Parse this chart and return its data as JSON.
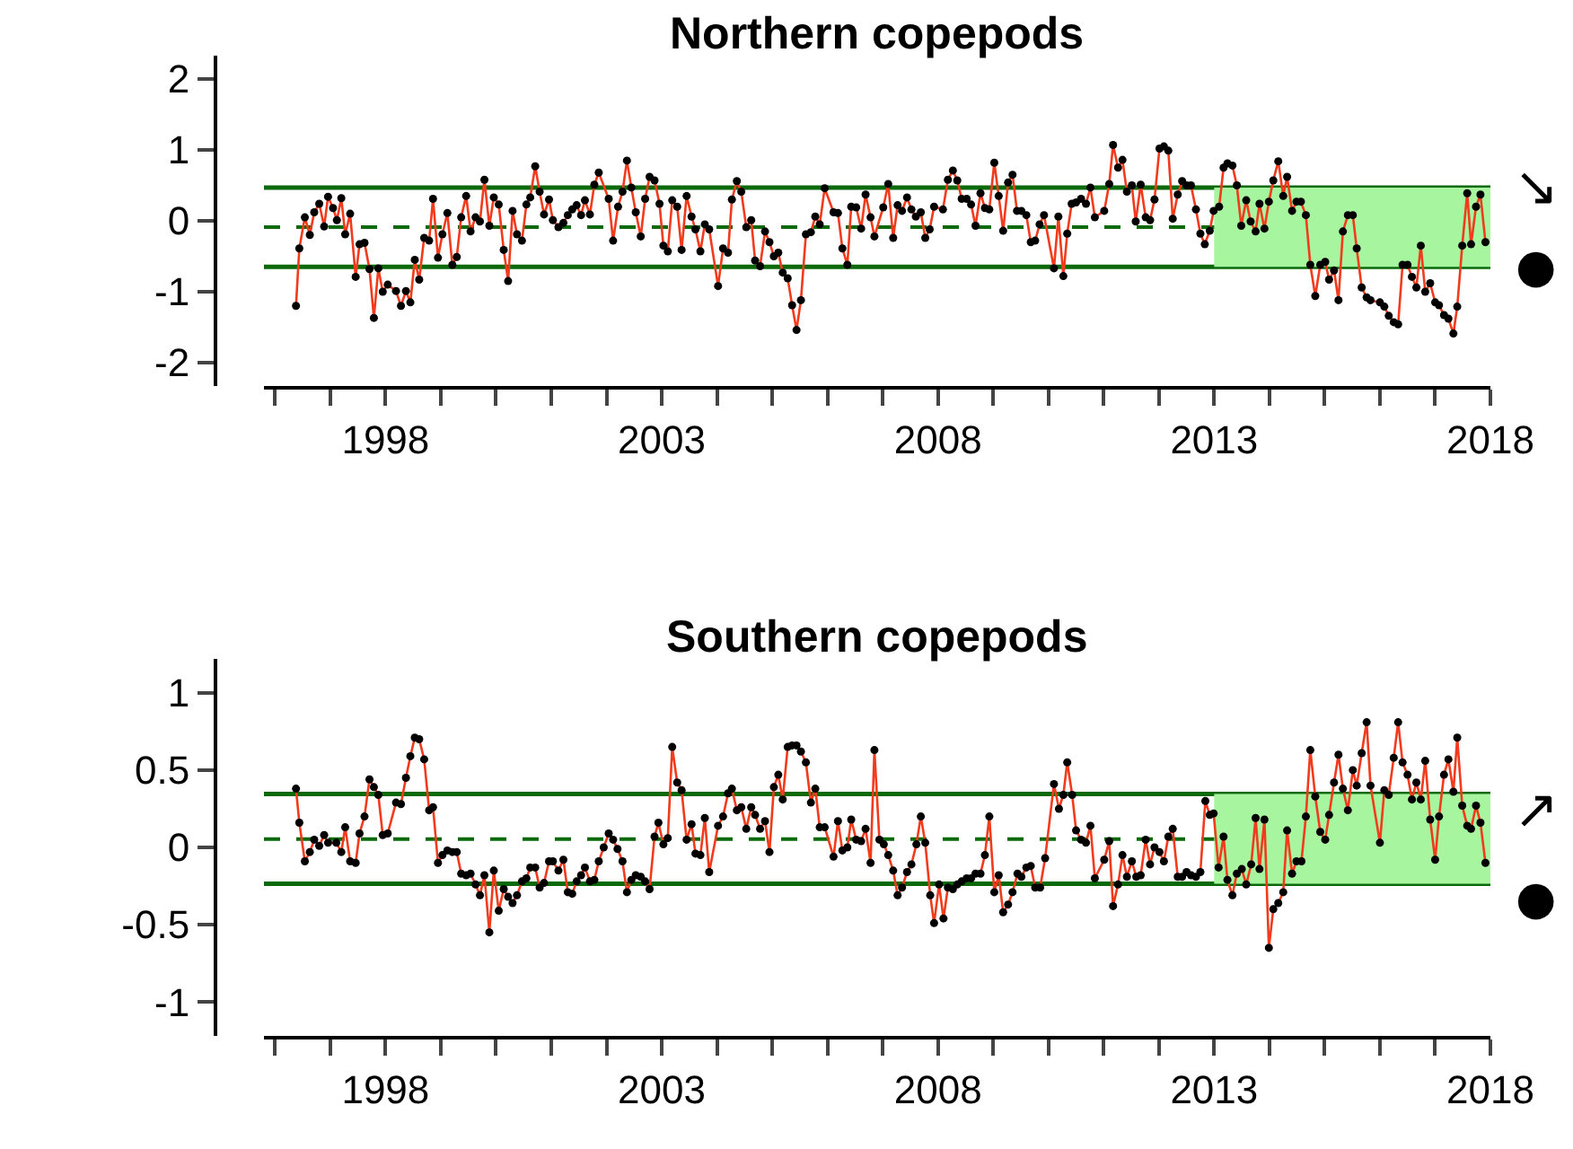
{
  "chart_data": [
    {
      "type": "line",
      "title": "Northern copepods",
      "marker": "circle",
      "line_style": "solid",
      "grid": false,
      "xlim": [
        1995.8,
        2018
      ],
      "xticks": [
        {
          "value": 1996,
          "label": null
        },
        {
          "value": 1997,
          "label": null
        },
        1998,
        {
          "value": 1999,
          "label": null
        },
        {
          "value": 2000,
          "label": null
        },
        {
          "value": 2001,
          "label": null
        },
        {
          "value": 2002,
          "label": null
        },
        2003,
        {
          "value": 2004,
          "label": null
        },
        {
          "value": 2005,
          "label": null
        },
        {
          "value": 2006,
          "label": null
        },
        {
          "value": 2007,
          "label": null
        },
        2008,
        {
          "value": 2009,
          "label": null
        },
        {
          "value": 2010,
          "label": null
        },
        {
          "value": 2011,
          "label": null
        },
        {
          "value": 2012,
          "label": null
        },
        2013,
        {
          "value": 2014,
          "label": null
        },
        {
          "value": 2015,
          "label": null
        },
        {
          "value": 2016,
          "label": null
        },
        {
          "value": 2017,
          "label": null
        },
        2018
      ],
      "ylim": [
        -2.33,
        2.33
      ],
      "yticks": [
        -2,
        -1,
        0,
        1,
        2
      ],
      "ref_lines": [
        {
          "axis": "y",
          "value": 0.47,
          "color": "#0a6a0a",
          "line_style": "solid"
        },
        {
          "axis": "y",
          "value": -0.09,
          "color": "#0a6a0a",
          "line_style": "dashed"
        },
        {
          "axis": "y",
          "value": -0.65,
          "color": "#0a6a0a",
          "line_style": "solid"
        }
      ],
      "bands": [
        {
          "axis": "x",
          "from": 2013,
          "to": 2018,
          "color": "#a8f5a0"
        }
      ],
      "annotations": [
        "↘",
        "●"
      ],
      "series": [
        {
          "color": "#f23a1c",
          "x": [
            1996.38,
            1996.44,
            1996.54,
            1996.63,
            1996.71,
            1996.8,
            1996.89,
            1996.96,
            1997.05,
            1997.12,
            1997.2,
            1997.27,
            1997.36,
            1997.46,
            1997.53,
            1997.62,
            1997.71,
            1997.79,
            1997.87,
            1997.95,
            1998.04,
            1998.19,
            1998.28,
            1998.37,
            1998.45,
            1998.53,
            1998.61,
            1998.7,
            1998.79,
            1998.86,
            1998.95,
            1999.03,
            1999.12,
            1999.21,
            1999.29,
            1999.37,
            1999.46,
            1999.54,
            1999.63,
            1999.71,
            1999.79,
            1999.88,
            1999.96,
            2000.05,
            2000.14,
            2000.22,
            2000.3,
            2000.38,
            2000.47,
            2000.55,
            2000.62,
            2000.71,
            2000.79,
            2000.87,
            2000.96,
            2001.03,
            2001.13,
            2001.22,
            2001.3,
            2001.38,
            2001.46,
            2001.54,
            2001.61,
            2001.7,
            2001.78,
            2001.86,
            2002.04,
            2002.12,
            2002.21,
            2002.29,
            2002.37,
            2002.45,
            2002.53,
            2002.62,
            2002.7,
            2002.78,
            2002.87,
            2002.96,
            2003.03,
            2003.11,
            2003.19,
            2003.28,
            2003.36,
            2003.45,
            2003.54,
            2003.61,
            2003.7,
            2003.78,
            2003.86,
            2004.02,
            2004.11,
            2004.2,
            2004.27,
            2004.36,
            2004.44,
            2004.53,
            2004.62,
            2004.69,
            2004.78,
            2004.87,
            2004.95,
            2005.03,
            2005.11,
            2005.19,
            2005.28,
            2005.36,
            2005.44,
            2005.52,
            2005.61,
            2005.7,
            2005.78,
            2005.86,
            2005.95,
            2006.11,
            2006.19,
            2006.27,
            2006.36,
            2006.43,
            2006.52,
            2006.61,
            2006.69,
            2006.78,
            2006.85,
            2007.01,
            2007.1,
            2007.19,
            2007.27,
            2007.35,
            2007.44,
            2007.52,
            2007.6,
            2007.69,
            2007.77,
            2007.85,
            2007.93,
            2008.09,
            2008.18,
            2008.27,
            2008.35,
            2008.43,
            2008.52,
            2008.6,
            2008.68,
            2008.77,
            2008.85,
            2008.93,
            2009.02,
            2009.1,
            2009.18,
            2009.27,
            2009.35,
            2009.43,
            2009.51,
            2009.6,
            2009.68,
            2009.76,
            2009.84,
            2009.92,
            2010.1,
            2010.18,
            2010.27,
            2010.34,
            2010.42,
            2010.5,
            2010.59,
            2010.68,
            2010.76,
            2010.84,
            2011.01,
            2011.1,
            2011.17,
            2011.26,
            2011.34,
            2011.42,
            2011.51,
            2011.58,
            2011.67,
            2011.76,
            2011.84,
            2011.92,
            2012.01,
            2012.09,
            2012.17,
            2012.25,
            2012.34,
            2012.42,
            2012.5,
            2012.58,
            2012.67,
            2012.75,
            2012.83,
            2012.92,
            2012.99,
            2013.09,
            2013.17,
            2013.24,
            2013.33,
            2013.41,
            2013.49,
            2013.58,
            2013.66,
            2013.75,
            2013.82,
            2013.91,
            2013.99,
            2014.07,
            2014.16,
            2014.25,
            2014.32,
            2014.41,
            2014.49,
            2014.57,
            2014.66,
            2014.74,
            2014.83,
            2014.92,
            2015.01,
            2015.08,
            2015.17,
            2015.25,
            2015.33,
            2015.42,
            2015.51,
            2015.58,
            2015.67,
            2015.76,
            2015.83,
            2016.0,
            2016.08,
            2016.16,
            2016.25,
            2016.33,
            2016.41,
            2016.5,
            2016.58,
            2016.66,
            2016.74,
            2016.82,
            2016.91,
            2017.0,
            2017.07,
            2017.16,
            2017.24,
            2017.33,
            2017.4,
            2017.49,
            2017.58,
            2017.65,
            2017.74,
            2017.82,
            2017.91
          ],
          "values": [
            -1.2,
            -0.39,
            0.05,
            -0.2,
            0.12,
            0.24,
            -0.08,
            0.34,
            0.18,
            0.01,
            0.32,
            -0.19,
            0.1,
            -0.79,
            -0.33,
            -0.31,
            -0.68,
            -1.37,
            -0.67,
            -1.0,
            -0.9,
            -0.99,
            -1.2,
            -0.99,
            -1.15,
            -0.55,
            -0.83,
            -0.24,
            -0.28,
            0.31,
            -0.52,
            -0.19,
            0.11,
            -0.62,
            -0.51,
            0.05,
            0.35,
            -0.15,
            0.05,
            -0.01,
            0.58,
            -0.07,
            0.33,
            0.23,
            -0.41,
            -0.85,
            0.14,
            -0.19,
            -0.28,
            0.23,
            0.33,
            0.77,
            0.41,
            0.09,
            0.3,
            0.01,
            -0.09,
            -0.03,
            0.08,
            0.16,
            0.22,
            0.08,
            0.29,
            0.09,
            0.51,
            0.68,
            0.31,
            -0.28,
            0.2,
            0.41,
            0.85,
            0.47,
            0.12,
            -0.22,
            0.31,
            0.62,
            0.57,
            0.24,
            -0.35,
            -0.43,
            0.29,
            0.2,
            -0.41,
            0.35,
            0.06,
            -0.12,
            -0.43,
            -0.05,
            -0.12,
            -0.92,
            -0.39,
            -0.45,
            0.3,
            0.56,
            0.41,
            -0.09,
            0.01,
            -0.56,
            -0.64,
            -0.15,
            -0.3,
            -0.5,
            -0.45,
            -0.73,
            -0.81,
            -1.19,
            -1.54,
            -1.12,
            -0.19,
            -0.16,
            0.06,
            -0.05,
            0.46,
            0.12,
            0.11,
            -0.39,
            -0.62,
            0.2,
            0.19,
            -0.11,
            0.37,
            0.05,
            -0.22,
            0.19,
            0.52,
            -0.24,
            0.22,
            0.14,
            0.33,
            0.16,
            0.06,
            0.12,
            -0.24,
            -0.12,
            0.2,
            0.16,
            0.58,
            0.71,
            0.57,
            0.31,
            0.31,
            0.23,
            -0.07,
            0.39,
            0.18,
            0.16,
            0.82,
            0.35,
            -0.14,
            0.54,
            0.65,
            0.14,
            0.14,
            0.08,
            -0.3,
            -0.28,
            -0.05,
            0.08,
            -0.67,
            0.06,
            -0.78,
            -0.18,
            0.24,
            0.26,
            0.31,
            0.24,
            0.47,
            0.05,
            0.14,
            0.52,
            1.07,
            0.75,
            0.86,
            0.41,
            0.5,
            -0.01,
            0.51,
            0.05,
            0.01,
            0.3,
            1.02,
            1.05,
            0.99,
            0.03,
            0.37,
            0.56,
            0.5,
            0.5,
            0.16,
            -0.18,
            -0.33,
            -0.14,
            0.14,
            0.2,
            0.75,
            0.81,
            0.78,
            0.5,
            -0.07,
            0.29,
            -0.01,
            -0.15,
            0.24,
            -0.11,
            0.27,
            0.57,
            0.84,
            0.35,
            0.62,
            0.14,
            0.27,
            0.27,
            0.08,
            -0.62,
            -1.06,
            -0.62,
            -0.58,
            -0.83,
            -0.7,
            -1.12,
            -0.15,
            0.08,
            0.08,
            -0.39,
            -0.94,
            -1.08,
            -1.12,
            -1.15,
            -1.21,
            -1.34,
            -1.43,
            -1.46,
            -0.62,
            -0.62,
            -0.79,
            -0.94,
            -0.35,
            -1.0,
            -0.88,
            -1.15,
            -1.19,
            -1.33,
            -1.38,
            -1.59,
            -1.21,
            -0.35,
            0.39,
            -0.33,
            0.2,
            0.37,
            -0.3
          ]
        }
      ]
    },
    {
      "type": "line",
      "title": "Southern copepods",
      "marker": "circle",
      "line_style": "solid",
      "grid": false,
      "xlim": [
        1995.8,
        2018
      ],
      "xticks": [
        {
          "value": 1996,
          "label": null
        },
        {
          "value": 1997,
          "label": null
        },
        1998,
        {
          "value": 1999,
          "label": null
        },
        {
          "value": 2000,
          "label": null
        },
        {
          "value": 2001,
          "label": null
        },
        {
          "value": 2002,
          "label": null
        },
        2003,
        {
          "value": 2004,
          "label": null
        },
        {
          "value": 2005,
          "label": null
        },
        {
          "value": 2006,
          "label": null
        },
        {
          "value": 2007,
          "label": null
        },
        2008,
        {
          "value": 2009,
          "label": null
        },
        {
          "value": 2010,
          "label": null
        },
        {
          "value": 2011,
          "label": null
        },
        {
          "value": 2012,
          "label": null
        },
        2013,
        {
          "value": 2014,
          "label": null
        },
        {
          "value": 2015,
          "label": null
        },
        {
          "value": 2016,
          "label": null
        },
        {
          "value": 2017,
          "label": null
        },
        2018
      ],
      "ylim": [
        -1.22,
        1.22
      ],
      "yticks": [
        -1,
        -0.5,
        0,
        0.5,
        1
      ],
      "ref_lines": [
        {
          "axis": "y",
          "value": 0.345,
          "color": "#0a6a0a",
          "line_style": "solid"
        },
        {
          "axis": "y",
          "value": 0.054,
          "color": "#0a6a0a",
          "line_style": "dashed"
        },
        {
          "axis": "y",
          "value": -0.236,
          "color": "#0a6a0a",
          "line_style": "solid"
        }
      ],
      "bands": [
        {
          "axis": "x",
          "from": 2013,
          "to": 2018,
          "color": "#a8f5a0"
        }
      ],
      "annotations": [
        "↗",
        "●"
      ],
      "series": [
        {
          "color": "#f23a1c",
          "x": [
            1996.38,
            1996.44,
            1996.54,
            1996.63,
            1996.71,
            1996.8,
            1996.89,
            1996.96,
            1997.11,
            1997.2,
            1997.27,
            1997.36,
            1997.46,
            1997.53,
            1997.62,
            1997.71,
            1997.79,
            1997.87,
            1997.95,
            1998.04,
            1998.19,
            1998.28,
            1998.37,
            1998.45,
            1998.53,
            1998.61,
            1998.7,
            1998.79,
            1998.86,
            1998.95,
            1999.03,
            1999.12,
            1999.21,
            1999.29,
            1999.37,
            1999.46,
            1999.54,
            1999.63,
            1999.71,
            1999.79,
            1999.88,
            1999.96,
            2000.05,
            2000.14,
            2000.22,
            2000.3,
            2000.38,
            2000.47,
            2000.55,
            2000.62,
            2000.71,
            2000.79,
            2000.87,
            2000.96,
            2001.03,
            2001.13,
            2001.22,
            2001.3,
            2001.38,
            2001.46,
            2001.54,
            2001.61,
            2001.7,
            2001.78,
            2001.86,
            2001.95,
            2002.04,
            2002.12,
            2002.2,
            2002.29,
            2002.37,
            2002.45,
            2002.53,
            2002.62,
            2002.7,
            2002.78,
            2002.87,
            2002.94,
            2003.03,
            2003.11,
            2003.19,
            2003.28,
            2003.36,
            2003.45,
            2003.54,
            2003.61,
            2003.7,
            2003.78,
            2003.86,
            2004.02,
            2004.11,
            2004.2,
            2004.27,
            2004.36,
            2004.44,
            2004.53,
            2004.62,
            2004.69,
            2004.78,
            2004.87,
            2004.95,
            2005.03,
            2005.11,
            2005.19,
            2005.28,
            2005.36,
            2005.44,
            2005.52,
            2005.61,
            2005.7,
            2005.78,
            2005.86,
            2005.95,
            2006.11,
            2006.19,
            2006.27,
            2006.36,
            2006.43,
            2006.52,
            2006.61,
            2006.69,
            2006.78,
            2006.85,
            2006.94,
            2007.02,
            2007.1,
            2007.19,
            2007.27,
            2007.35,
            2007.44,
            2007.52,
            2007.61,
            2007.69,
            2007.77,
            2007.86,
            2007.93,
            2008.02,
            2008.1,
            2008.18,
            2008.27,
            2008.35,
            2008.43,
            2008.52,
            2008.6,
            2008.68,
            2008.77,
            2008.85,
            2008.93,
            2009.02,
            2009.1,
            2009.18,
            2009.27,
            2009.35,
            2009.44,
            2009.51,
            2009.6,
            2009.68,
            2009.76,
            2009.85,
            2009.94,
            2010.1,
            2010.19,
            2010.27,
            2010.34,
            2010.43,
            2010.5,
            2010.59,
            2010.68,
            2010.76,
            2010.84,
            2011.01,
            2011.1,
            2011.17,
            2011.26,
            2011.34,
            2011.42,
            2011.51,
            2011.59,
            2011.67,
            2011.76,
            2011.84,
            2011.92,
            2012.01,
            2012.09,
            2012.17,
            2012.25,
            2012.34,
            2012.42,
            2012.5,
            2012.58,
            2012.67,
            2012.75,
            2012.84,
            2012.92,
            2012.99,
            2013.08,
            2013.17,
            2013.24,
            2013.33,
            2013.41,
            2013.5,
            2013.58,
            2013.67,
            2013.75,
            2013.82,
            2013.91,
            2013.99,
            2014.07,
            2014.16,
            2014.25,
            2014.32,
            2014.41,
            2014.49,
            2014.58,
            2014.66,
            2014.74,
            2014.83,
            2014.92,
            2015.01,
            2015.08,
            2015.17,
            2015.25,
            2015.33,
            2015.42,
            2015.51,
            2015.58,
            2015.67,
            2015.76,
            2015.83,
            2016.0,
            2016.08,
            2016.16,
            2016.25,
            2016.33,
            2016.41,
            2016.5,
            2016.58,
            2016.66,
            2016.74,
            2016.82,
            2016.91,
            2017.0,
            2017.07,
            2017.16,
            2017.24,
            2017.33,
            2017.4,
            2017.49,
            2017.58,
            2017.65,
            2017.74,
            2017.82,
            2017.91
          ],
          "values": [
            0.38,
            0.16,
            -0.09,
            -0.03,
            0.05,
            0.01,
            0.08,
            0.03,
            0.03,
            -0.03,
            0.13,
            -0.09,
            -0.1,
            0.09,
            0.2,
            0.44,
            0.39,
            0.34,
            0.08,
            0.09,
            0.29,
            0.28,
            0.45,
            0.59,
            0.71,
            0.7,
            0.57,
            0.24,
            0.26,
            -0.1,
            -0.05,
            -0.02,
            -0.03,
            -0.03,
            -0.17,
            -0.18,
            -0.17,
            -0.24,
            -0.31,
            -0.18,
            -0.55,
            -0.15,
            -0.41,
            -0.27,
            -0.32,
            -0.36,
            -0.31,
            -0.22,
            -0.2,
            -0.13,
            -0.13,
            -0.26,
            -0.23,
            -0.09,
            -0.09,
            -0.15,
            -0.08,
            -0.29,
            -0.3,
            -0.22,
            -0.18,
            -0.13,
            -0.22,
            -0.21,
            -0.09,
            0.0,
            0.09,
            0.05,
            -0.01,
            -0.09,
            -0.29,
            -0.21,
            -0.18,
            -0.19,
            -0.22,
            -0.27,
            0.07,
            0.16,
            0.02,
            0.06,
            0.65,
            0.42,
            0.37,
            0.05,
            0.15,
            -0.04,
            -0.05,
            0.19,
            -0.16,
            0.14,
            0.2,
            0.35,
            0.38,
            0.24,
            0.26,
            0.12,
            0.26,
            0.21,
            0.12,
            0.17,
            -0.03,
            0.39,
            0.47,
            0.31,
            0.65,
            0.66,
            0.66,
            0.62,
            0.55,
            0.29,
            0.38,
            0.13,
            0.13,
            -0.06,
            0.17,
            -0.02,
            0.0,
            0.18,
            0.05,
            0.04,
            0.12,
            -0.1,
            0.63,
            0.05,
            0.02,
            -0.05,
            -0.15,
            -0.31,
            -0.26,
            -0.16,
            -0.11,
            0.02,
            0.2,
            0.03,
            -0.31,
            -0.49,
            -0.24,
            -0.46,
            -0.26,
            -0.27,
            -0.24,
            -0.22,
            -0.2,
            -0.2,
            -0.17,
            -0.17,
            -0.05,
            0.2,
            -0.29,
            -0.18,
            -0.42,
            -0.37,
            -0.29,
            -0.17,
            -0.19,
            -0.13,
            -0.12,
            -0.26,
            -0.26,
            -0.07,
            0.41,
            0.25,
            0.34,
            0.55,
            0.34,
            0.11,
            0.05,
            0.03,
            0.14,
            -0.2,
            -0.08,
            0.04,
            -0.38,
            -0.24,
            -0.05,
            -0.19,
            -0.09,
            -0.19,
            -0.18,
            0.05,
            -0.11,
            0.0,
            -0.03,
            -0.09,
            0.07,
            0.12,
            -0.19,
            -0.19,
            -0.16,
            -0.18,
            -0.19,
            -0.16,
            0.3,
            0.21,
            0.22,
            -0.13,
            0.07,
            -0.21,
            -0.31,
            -0.17,
            -0.14,
            -0.24,
            -0.11,
            0.19,
            -0.14,
            0.18,
            -0.65,
            -0.4,
            -0.36,
            -0.29,
            0.11,
            -0.17,
            -0.09,
            -0.09,
            0.2,
            0.63,
            0.33,
            0.1,
            0.05,
            0.21,
            0.42,
            0.6,
            0.38,
            0.24,
            0.5,
            0.4,
            0.61,
            0.81,
            0.4,
            0.03,
            0.37,
            0.34,
            0.58,
            0.81,
            0.55,
            0.47,
            0.31,
            0.42,
            0.31,
            0.56,
            0.18,
            -0.08,
            0.2,
            0.47,
            0.57,
            0.36,
            0.71,
            0.27,
            0.14,
            0.12,
            0.27,
            0.16,
            -0.1
          ]
        }
      ]
    }
  ]
}
